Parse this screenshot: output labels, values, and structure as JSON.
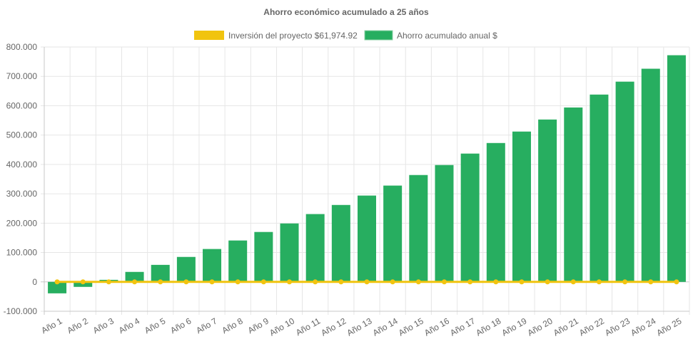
{
  "chart_data": {
    "type": "bar",
    "title": "Ahorro económico acumulado a 25 años",
    "categories": [
      "Año 1",
      "Año 2",
      "Año 3",
      "Año 4",
      "Año 5",
      "Año 6",
      "Año 7",
      "Año 8",
      "Año 9",
      "Año 10",
      "Año 11",
      "Año 12",
      "Año 13",
      "Año 14",
      "Año 15",
      "Año 16",
      "Año 17",
      "Año 18",
      "Año 19",
      "Año 20",
      "Año 21",
      "Año 22",
      "Año 23",
      "Año 24",
      "Año 25"
    ],
    "series": [
      {
        "name": "Inversión del proyecto $61,974.92",
        "type": "line",
        "color": "#f1c40f",
        "values": [
          0,
          0,
          0,
          0,
          0,
          0,
          0,
          0,
          0,
          0,
          0,
          0,
          0,
          0,
          0,
          0,
          0,
          0,
          0,
          0,
          0,
          0,
          0,
          0,
          0
        ]
      },
      {
        "name": "Ahorro acumulado anual $",
        "type": "bar",
        "color": "#27ae60",
        "values": [
          -39000,
          -17000,
          7000,
          34000,
          58000,
          85000,
          112000,
          141000,
          170000,
          199000,
          231000,
          262000,
          294000,
          328000,
          364000,
          398000,
          437000,
          473000,
          512000,
          553000,
          594000,
          638000,
          682000,
          726000,
          772000
        ]
      }
    ],
    "ylim": [
      -100000,
      800000
    ],
    "yticks": [
      -100000,
      0,
      100000,
      200000,
      300000,
      400000,
      500000,
      600000,
      700000,
      800000
    ],
    "ytick_labels": [
      "-100.000",
      "0",
      "100.000",
      "200.000",
      "300.000",
      "400.000",
      "500.000",
      "600.000",
      "700.000",
      "800.000"
    ],
    "grid": true,
    "legend": "top"
  }
}
